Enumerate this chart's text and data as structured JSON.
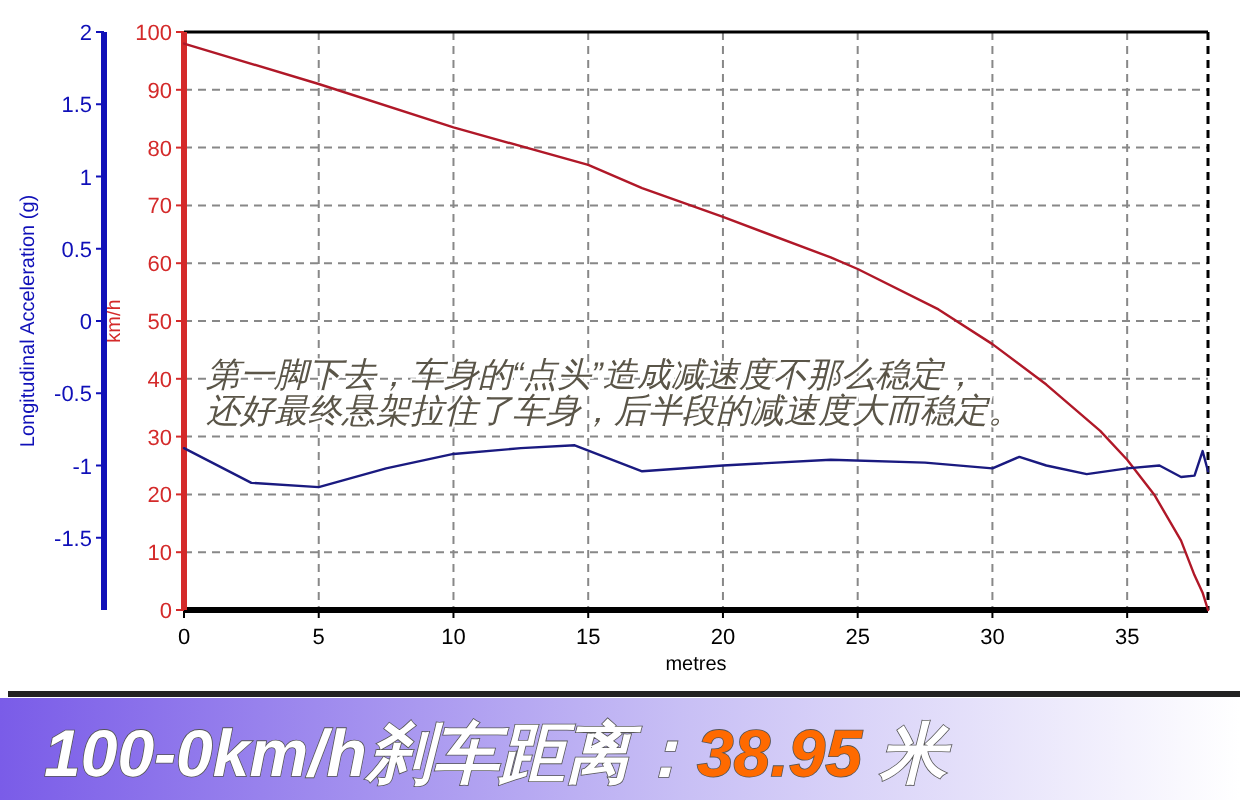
{
  "chart_data": {
    "type": "line",
    "title": "100-0km/h刹车距离：38.95 米",
    "xlabel": "metres",
    "ylabel": "km/h",
    "y2label": "Longitudinal Acceleration (g)",
    "annotations": [
      "第一脚下去，车身的“点头”造成减速度不那么稳定，",
      "还好最终悬架拉住了车身，后半段的减速度大而稳定。"
    ],
    "xlim": [
      0,
      38
    ],
    "xticks": [
      0,
      5,
      10,
      15,
      20,
      25,
      30,
      35
    ],
    "ylim": [
      0,
      100
    ],
    "yticks": [
      0,
      10,
      20,
      30,
      40,
      50,
      60,
      70,
      80,
      90,
      100
    ],
    "y2lim": [
      -2,
      2
    ],
    "y2ticks": [
      -1.5,
      -1,
      -0.5,
      0,
      0.5,
      1,
      1.5,
      2
    ],
    "grid": true,
    "marker": "none",
    "line_style": "solid",
    "series": [
      {
        "color": "#b01828",
        "x": [
          0,
          5,
          10,
          15,
          17,
          20,
          24,
          25,
          28,
          30,
          32,
          34,
          35,
          36,
          37,
          37.5,
          37.8,
          38
        ],
        "values": [
          98,
          91,
          83.5,
          77,
          73,
          68,
          61,
          59,
          52,
          46,
          39,
          31,
          26,
          20,
          12,
          6,
          3,
          0
        ]
      },
      {
        "color": "#1a1a80",
        "axis": "y2",
        "x": [
          0,
          2.5,
          5,
          7.5,
          10,
          12.5,
          14.5,
          17,
          20,
          24,
          27.5,
          30,
          31,
          32,
          33.5,
          35,
          36.2,
          37,
          37.5,
          37.8,
          38
        ],
        "values": [
          -0.88,
          -1.12,
          -1.15,
          -1.02,
          -0.92,
          -0.88,
          -0.86,
          -1.04,
          -1.0,
          -0.96,
          -0.98,
          -1.02,
          -0.94,
          -1.0,
          -1.06,
          -1.02,
          -1.0,
          -1.08,
          -1.07,
          -0.9,
          -1.04
        ]
      }
    ]
  }
}
